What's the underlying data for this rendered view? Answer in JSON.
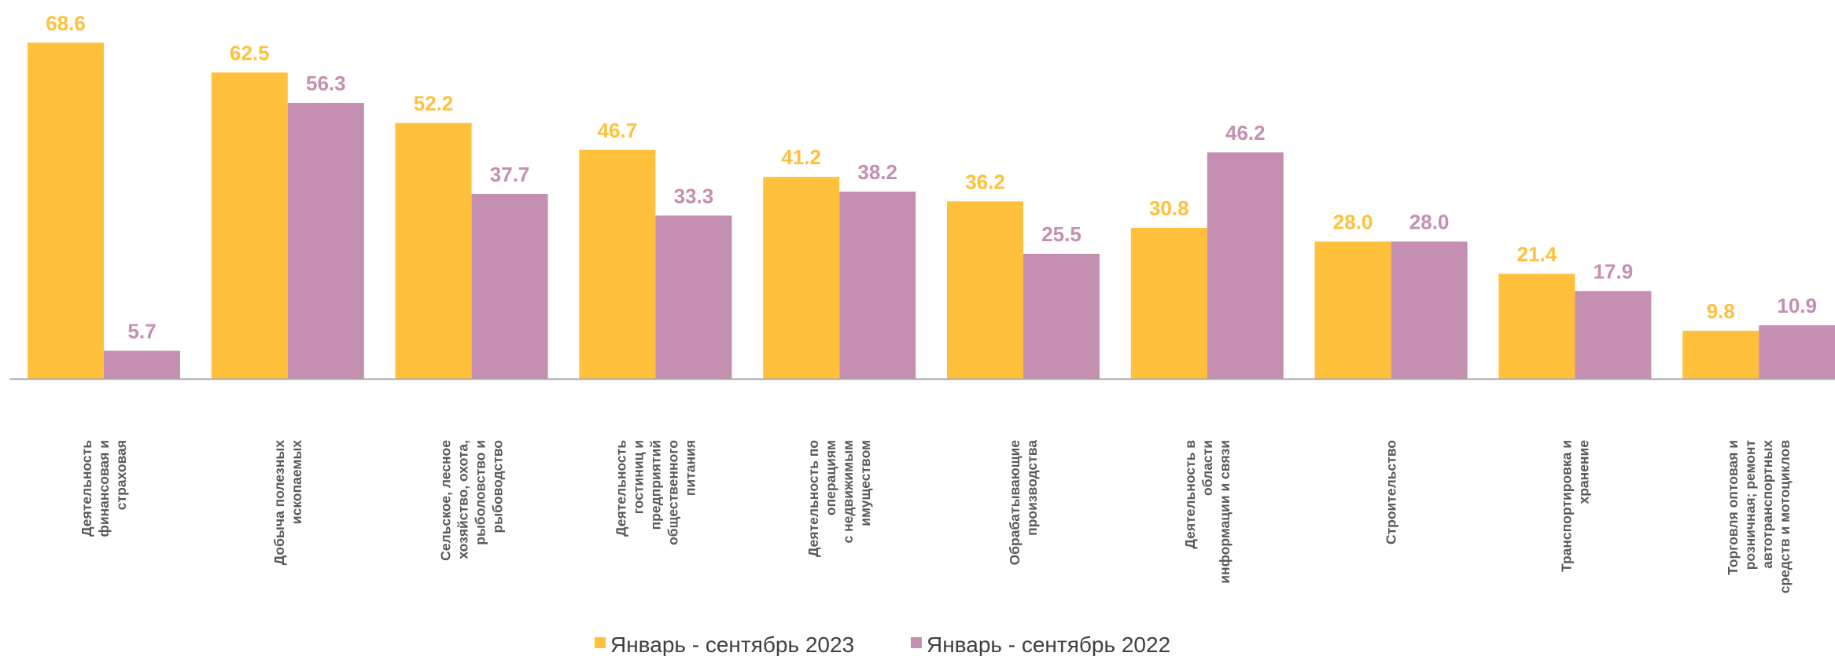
{
  "colors": {
    "series_2023": "#FFC13B",
    "series_2022": "#C48FB0",
    "axis": "#A6A6A6",
    "category_text": "#595959",
    "legend_text": "#404040"
  },
  "chart_data": {
    "type": "bar",
    "title": "",
    "xlabel": "",
    "ylabel": "",
    "ylim": [
      0,
      70
    ],
    "grid": false,
    "legend_position": "bottom",
    "categories": [
      [
        "Деятельность",
        "финансовая и",
        "страховая"
      ],
      [
        "Добыча полезных",
        "ископаемых"
      ],
      [
        "Сельское, лесное",
        "хозяйство, охота,",
        "рыболовство и",
        "рыбоводство"
      ],
      [
        "Деятельность",
        "гостиниц и",
        "предприятий",
        "общественного",
        "питания"
      ],
      [
        "Деятельность по",
        "операциям",
        "с недвижимым",
        "имуществом"
      ],
      [
        "Обрабатывающие",
        "производства"
      ],
      [
        "Деятельность в",
        "области",
        "информации и связи"
      ],
      [
        "Строительство"
      ],
      [
        "Транспортировка и",
        "хранение"
      ],
      [
        "Торговля оптовая и",
        "розничная; ремонт",
        "автотранспортных",
        "средств и мотоциклов"
      ]
    ],
    "series": [
      {
        "name": "Январь - сентябрь 2023",
        "values": [
          68.6,
          62.5,
          52.2,
          46.7,
          41.2,
          36.2,
          30.8,
          28.0,
          21.4,
          9.8
        ],
        "labels": [
          "68.6",
          "62.5",
          "52.2",
          "46.7",
          "41.2",
          "36.2",
          "30.8",
          "28.0",
          "21.4",
          "9.8"
        ]
      },
      {
        "name": "Январь - сентябрь 2022",
        "values": [
          5.7,
          56.3,
          37.7,
          33.3,
          38.2,
          25.5,
          46.2,
          28.0,
          17.9,
          10.9
        ],
        "labels": [
          "5.7",
          "56.3",
          "37.7",
          "33.3",
          "38.2",
          "25.5",
          "46.2",
          "28.0",
          "17.9",
          "10.9"
        ]
      }
    ]
  }
}
